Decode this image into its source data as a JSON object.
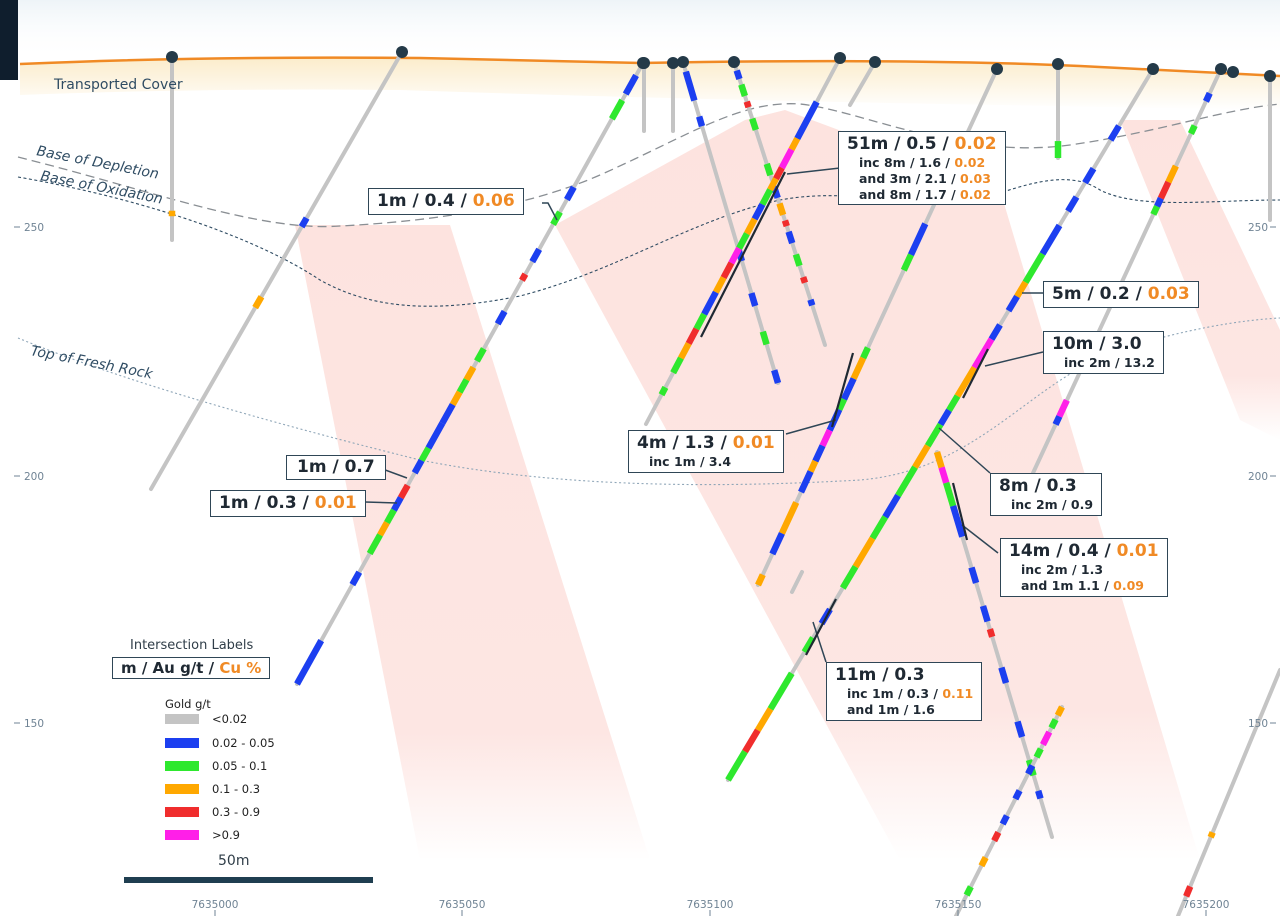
{
  "horizons": {
    "transported_cover": "Transported Cover",
    "base_of_depletion": "Base of Depletion",
    "base_of_oxidation": "Base of Oxidation",
    "top_of_fresh_rock": "Top of Fresh Rock"
  },
  "axes": {
    "elevation_left": [
      "250",
      "200",
      "150"
    ],
    "elevation_right": [
      "250",
      "200",
      "150"
    ],
    "northing": [
      "7635000",
      "7635050",
      "7635100",
      "7635150",
      "7635200"
    ]
  },
  "intersections": [
    {
      "id": "a",
      "main": "1m / 0.4 / ",
      "cu": "0.06"
    },
    {
      "id": "b",
      "main": "51m / 0.5 / ",
      "cu": "0.02",
      "subs": [
        {
          "text": "inc 8m / 1.6 / ",
          "cu": "0.02"
        },
        {
          "text": "and 3m / 2.1 / ",
          "cu": "0.03"
        },
        {
          "text": "and 8m / 1.7 / ",
          "cu": "0.02"
        }
      ]
    },
    {
      "id": "c",
      "main": "5m / 0.2 / ",
      "cu": "0.03"
    },
    {
      "id": "d",
      "main": "10m / 3.0",
      "subs": [
        {
          "text": "inc 2m / 13.2"
        }
      ]
    },
    {
      "id": "e",
      "main": "4m / 1.3 / ",
      "cu": "0.01",
      "subs": [
        {
          "text": "inc 1m / 3.4"
        }
      ]
    },
    {
      "id": "f",
      "main": "1m / 0.7"
    },
    {
      "id": "g",
      "main": "1m / 0.3 / ",
      "cu": "0.01"
    },
    {
      "id": "h",
      "main": "8m / 0.3",
      "subs": [
        {
          "text": "inc 2m / 0.9"
        }
      ]
    },
    {
      "id": "i",
      "main": "14m / 0.4 / ",
      "cu": "0.01",
      "subs": [
        {
          "text": "inc 2m / 1.3"
        },
        {
          "text": "and 1m 1.1 / ",
          "cu": "0.09"
        }
      ]
    },
    {
      "id": "j",
      "main": "11m / 0.3",
      "subs": [
        {
          "text": "inc 1m / 0.3 / ",
          "cu": "0.11"
        },
        {
          "text": "and 1m / 1.6"
        }
      ]
    }
  ],
  "legend": {
    "title": "Intersection Labels",
    "units_prefix": "m / Au g/t  / ",
    "units_cu": "Cu %",
    "gold_title": "Gold g/t",
    "classes": [
      {
        "label": "<0.02",
        "color": "#c4c4c4"
      },
      {
        "label": "0.02 - 0.05",
        "color": "#1c3ff0"
      },
      {
        "label": "0.05 - 0.1",
        "color": "#2ee82e"
      },
      {
        "label": "0.1 - 0.3",
        "color": "#ffa800"
      },
      {
        "label": "0.3 - 0.9",
        "color": "#f02d2d"
      },
      {
        "label": ">0.9",
        "color": "#ff1fe8"
      }
    ]
  },
  "scale": {
    "label": "50m"
  },
  "colors": {
    "topography": "#f08a25",
    "cu_text": "#f08a25",
    "zone": "#fde6e3",
    "hole": "#c4c4c4",
    "collar": "#243a48"
  }
}
